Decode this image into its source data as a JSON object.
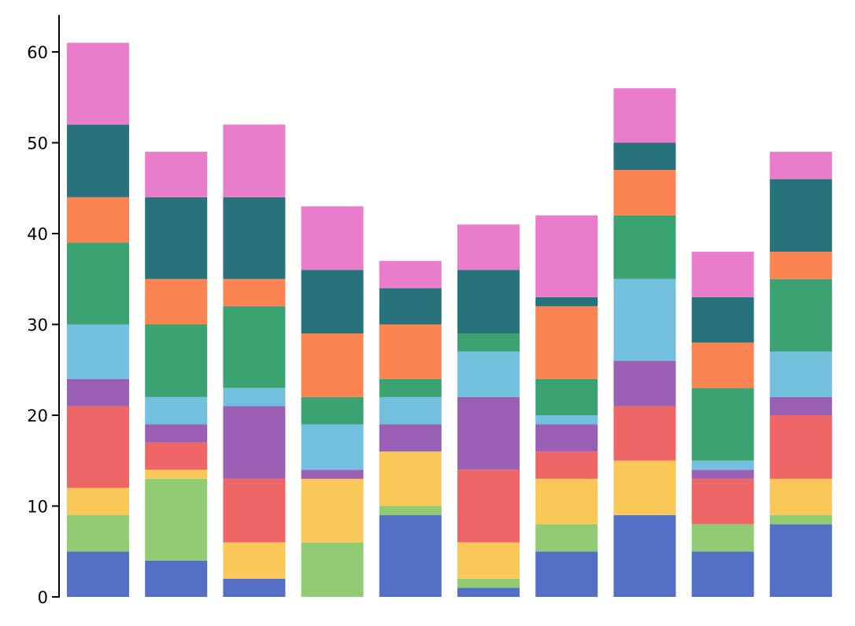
{
  "chart_data": {
    "type": "bar",
    "stacked": true,
    "title": "",
    "xlabel": "",
    "ylabel": "",
    "ylim": [
      0,
      64
    ],
    "yticks": [
      0,
      10,
      20,
      30,
      40,
      50,
      60
    ],
    "grid": false,
    "legend": "none",
    "bar_count": 10,
    "colors": [
      "#5470c6",
      "#91cc75",
      "#fac858",
      "#ee6666",
      "#9a60b4",
      "#73c0de",
      "#3ba272",
      "#fc8452",
      "#27727b",
      "#ea7ccc"
    ],
    "series": [
      {
        "values": [
          5,
          4,
          2,
          0,
          9,
          1,
          5,
          9,
          5,
          8
        ]
      },
      {
        "values": [
          4,
          9,
          0,
          6,
          1,
          1,
          3,
          0,
          3,
          1
        ]
      },
      {
        "values": [
          3,
          1,
          4,
          7,
          6,
          4,
          5,
          6,
          0,
          4
        ]
      },
      {
        "values": [
          9,
          3,
          7,
          0,
          0,
          8,
          3,
          6,
          5,
          7
        ]
      },
      {
        "values": [
          3,
          2,
          8,
          1,
          3,
          8,
          3,
          5,
          1,
          2
        ]
      },
      {
        "values": [
          6,
          3,
          2,
          5,
          3,
          5,
          1,
          9,
          1,
          5
        ]
      },
      {
        "values": [
          9,
          8,
          9,
          3,
          2,
          2,
          4,
          7,
          8,
          8
        ]
      },
      {
        "values": [
          5,
          5,
          3,
          7,
          6,
          0,
          8,
          5,
          5,
          3
        ]
      },
      {
        "values": [
          8,
          9,
          9,
          7,
          4,
          7,
          1,
          3,
          5,
          8
        ]
      },
      {
        "values": [
          9,
          5,
          8,
          7,
          3,
          5,
          9,
          6,
          5,
          3
        ]
      }
    ]
  }
}
